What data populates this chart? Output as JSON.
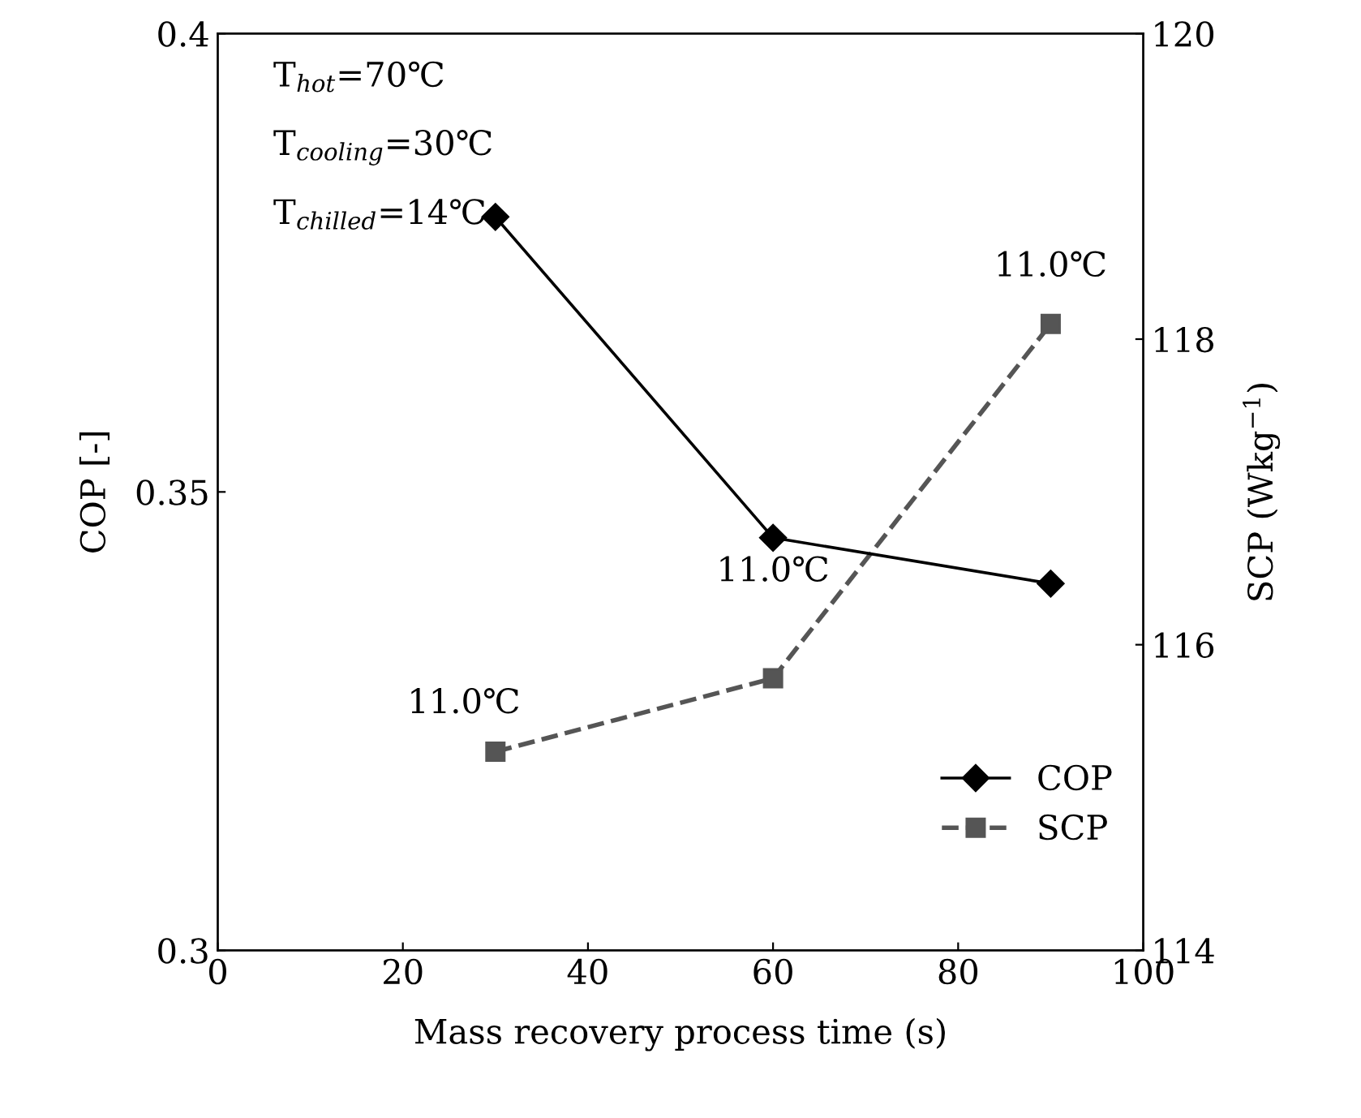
{
  "chart_data": {
    "type": "line",
    "xlabel": "Mass recovery process time (s)",
    "ylabel": "COP [-]",
    "y2label": "SCP (Wkg$^{−1}$)",
    "x": [
      30,
      60,
      90
    ],
    "series": [
      {
        "name": "COP",
        "color": "#000000",
        "values": [
          0.38,
          0.345,
          0.34
        ],
        "marker": "diamond",
        "line_style": "solid"
      },
      {
        "name": "SCP",
        "color": "#555555",
        "values": [
          115.3,
          115.78,
          118.1
        ],
        "marker": "square",
        "line_style": "dashed",
        "axis": "y2"
      }
    ],
    "xlim": [
      0,
      100
    ],
    "xticks": [
      0,
      20,
      40,
      60,
      80,
      100
    ],
    "ylim": [
      0.3,
      0.4
    ],
    "yticks": [
      {
        "value": 0.3,
        "label": "0.3"
      },
      {
        "value": 0.35,
        "label": "0.35"
      },
      {
        "value": 0.4,
        "label": "0.4"
      }
    ],
    "y2lim": [
      114,
      120
    ],
    "y2ticks": [
      114,
      116,
      118,
      120
    ],
    "grid": false,
    "legend": "bottom right",
    "annotations": [
      "T$_{hot}$=70℃",
      "T$_{cooling}$=30℃",
      "T$_{chilled}$=14℃",
      "11.0℃",
      "11.0℃",
      "11.0℃"
    ]
  }
}
